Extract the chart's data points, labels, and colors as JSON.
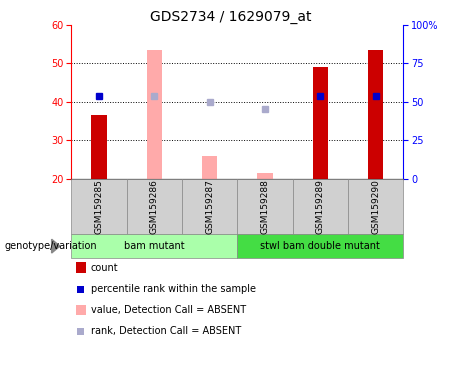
{
  "title": "GDS2734 / 1629079_at",
  "samples": [
    "GSM159285",
    "GSM159286",
    "GSM159287",
    "GSM159288",
    "GSM159289",
    "GSM159290"
  ],
  "count_values": [
    36.5,
    null,
    null,
    null,
    49.0,
    53.5
  ],
  "count_absent_values": [
    null,
    53.5,
    26.0,
    21.5,
    null,
    null
  ],
  "rank_values": [
    41.5,
    null,
    null,
    null,
    41.5,
    41.5
  ],
  "rank_absent_values": [
    null,
    41.5,
    40.0,
    38.0,
    null,
    null
  ],
  "ymin": 20,
  "ymax": 60,
  "yticks": [
    20,
    30,
    40,
    50,
    60
  ],
  "right_yticks": [
    0,
    25,
    50,
    75,
    100
  ],
  "right_yticklabels": [
    "0",
    "25",
    "50",
    "75",
    "100%"
  ],
  "groups": [
    {
      "label": "bam mutant",
      "samples": [
        0,
        1,
        2
      ],
      "color": "#aaffaa"
    },
    {
      "label": "stwl bam double mutant",
      "samples": [
        3,
        4,
        5
      ],
      "color": "#44dd44"
    }
  ],
  "count_color": "#cc0000",
  "count_absent_color": "#ffaaaa",
  "rank_color": "#0000cc",
  "rank_absent_color": "#aaaacc",
  "plot_bg": "#ffffff",
  "legend_items": [
    {
      "label": "count",
      "color": "#cc0000",
      "type": "bar"
    },
    {
      "label": "percentile rank within the sample",
      "color": "#0000cc",
      "type": "square"
    },
    {
      "label": "value, Detection Call = ABSENT",
      "color": "#ffaaaa",
      "type": "bar"
    },
    {
      "label": "rank, Detection Call = ABSENT",
      "color": "#aaaacc",
      "type": "square"
    }
  ]
}
